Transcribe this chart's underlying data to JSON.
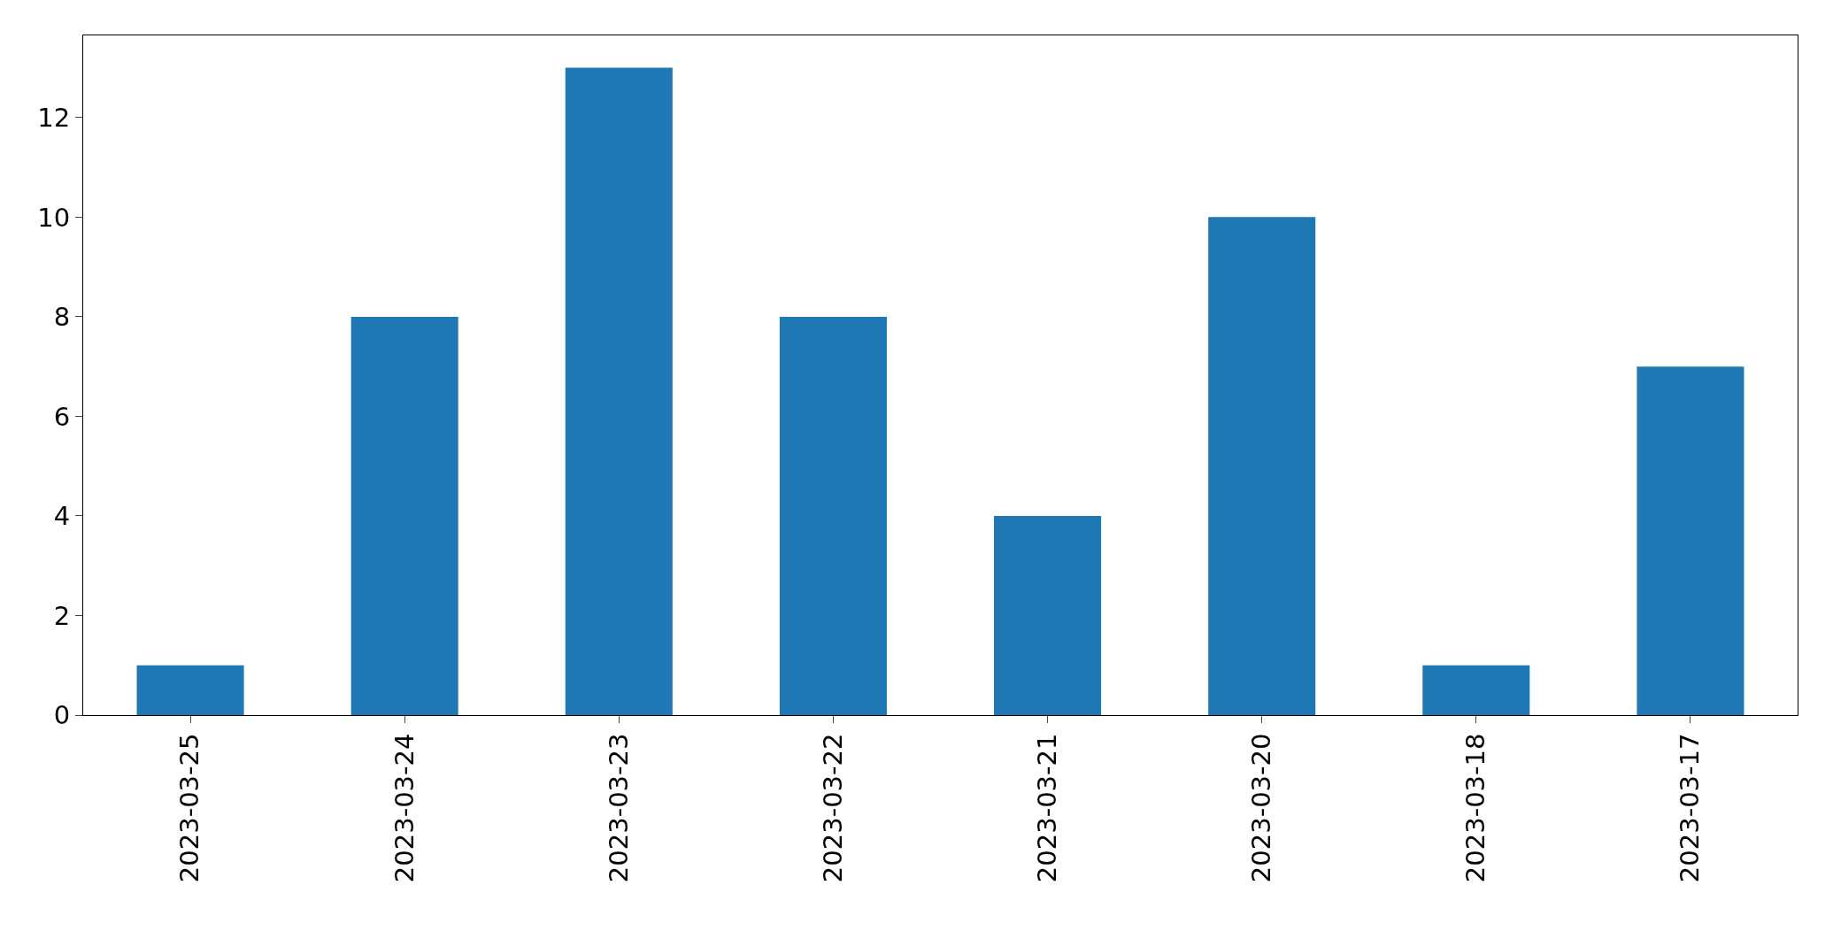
{
  "chart_data": {
    "type": "bar",
    "categories": [
      "2023-03-25",
      "2023-03-24",
      "2023-03-23",
      "2023-03-22",
      "2023-03-21",
      "2023-03-20",
      "2023-03-18",
      "2023-03-17"
    ],
    "values": [
      1,
      8,
      13,
      8,
      4,
      10,
      1,
      7
    ],
    "color": "#1f77b4",
    "ylim": [
      0,
      13.65
    ],
    "yticks": [
      0,
      2,
      4,
      6,
      8,
      10,
      12
    ]
  }
}
